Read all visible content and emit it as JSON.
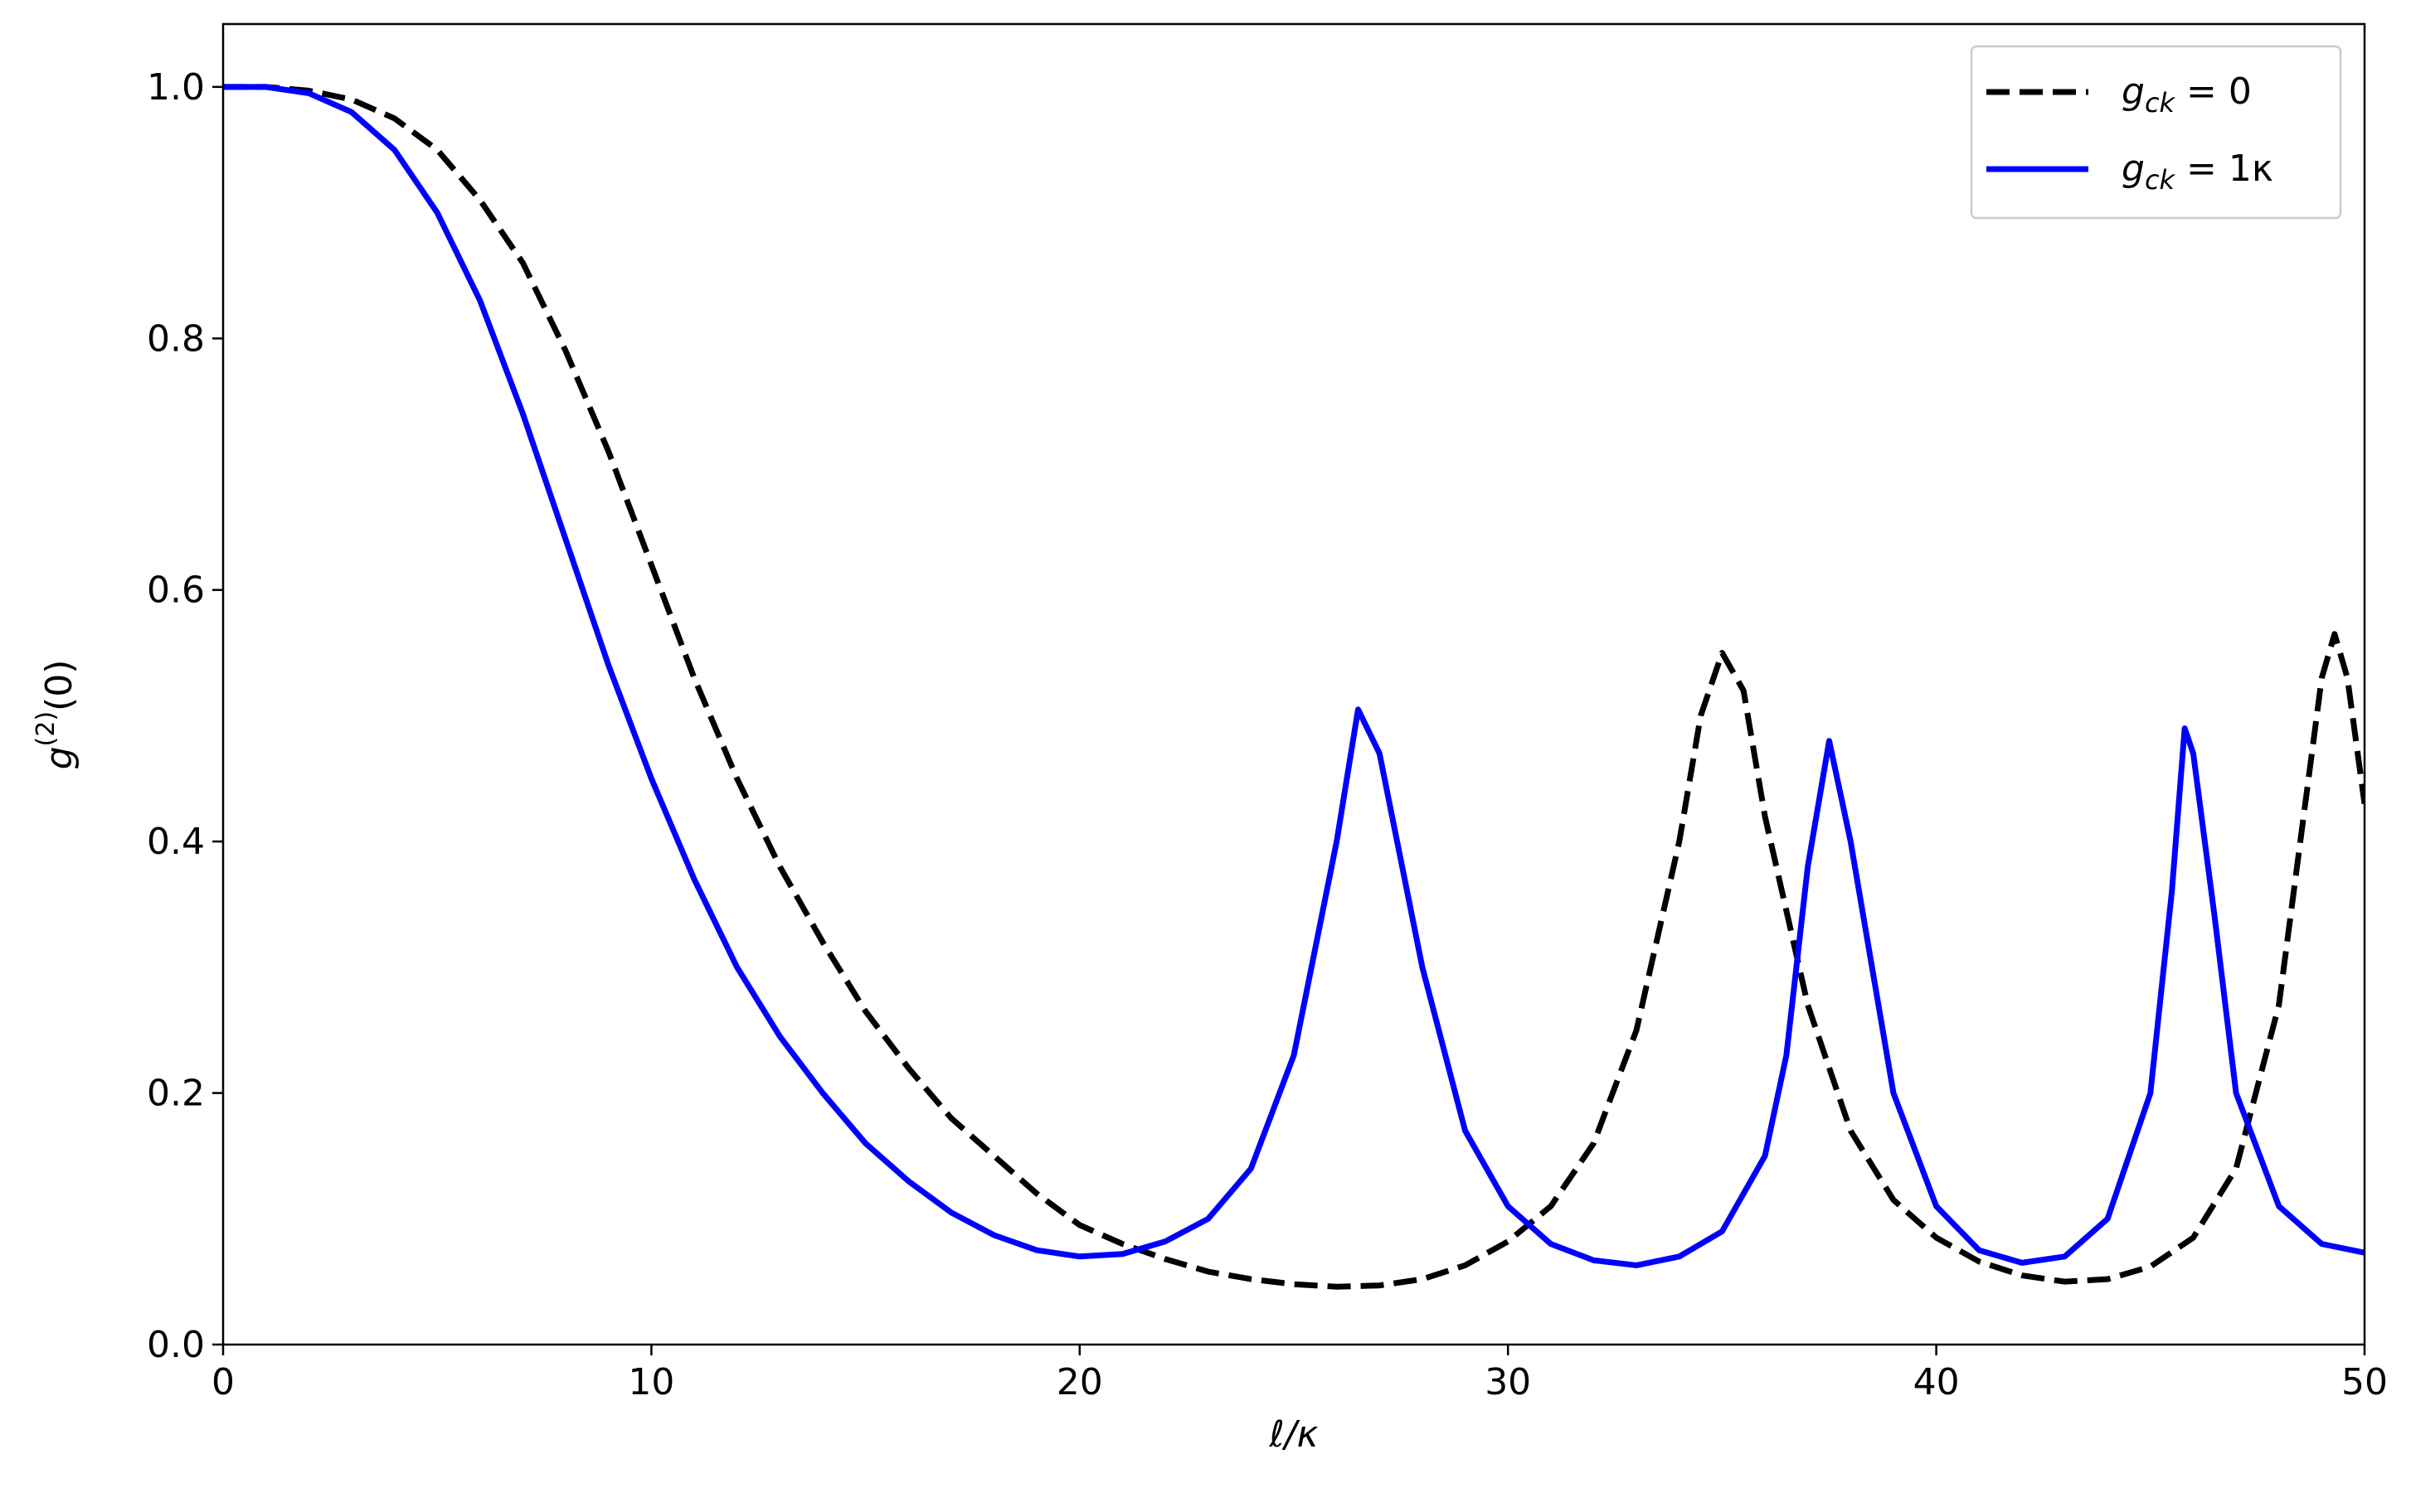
{
  "chart_data": {
    "type": "line",
    "xlabel": "ℓ/κ",
    "ylabel": "g(2)(0)",
    "xlim": [
      0,
      50
    ],
    "ylim": [
      0,
      1.05
    ],
    "xticks": [
      0,
      10,
      20,
      30,
      40,
      50
    ],
    "yticks": [
      {
        "value": 0,
        "label": "0.0"
      },
      0.2,
      0.4,
      0.6,
      0.8,
      {
        "value": 1,
        "label": "1.0"
      }
    ],
    "legend": "upper right",
    "series": [
      {
        "name": "gck = 0",
        "color": "#000000",
        "dash": true,
        "x": [
          0,
          1,
          2,
          3,
          4,
          5,
          6,
          7,
          8,
          9,
          10,
          11,
          12,
          13,
          14,
          15,
          16,
          17,
          18,
          19,
          20,
          21,
          22,
          23,
          24,
          25,
          26,
          27,
          28,
          29,
          30,
          31,
          32,
          33,
          34,
          34.5,
          35,
          35.5,
          36,
          37,
          38,
          39,
          40,
          41,
          42,
          43,
          44,
          45,
          46,
          47,
          48,
          48.5,
          49,
          49.3,
          49.6,
          50
        ],
        "values": [
          1.0,
          1.0,
          0.997,
          0.99,
          0.975,
          0.95,
          0.91,
          0.86,
          0.79,
          0.71,
          0.62,
          0.53,
          0.45,
          0.38,
          0.32,
          0.265,
          0.22,
          0.18,
          0.15,
          0.12,
          0.095,
          0.08,
          0.068,
          0.058,
          0.052,
          0.048,
          0.046,
          0.047,
          0.052,
          0.063,
          0.082,
          0.11,
          0.16,
          0.25,
          0.4,
          0.5,
          0.55,
          0.52,
          0.42,
          0.27,
          0.17,
          0.115,
          0.085,
          0.066,
          0.055,
          0.05,
          0.052,
          0.062,
          0.085,
          0.14,
          0.27,
          0.4,
          0.53,
          0.565,
          0.53,
          0.43
        ]
      },
      {
        "name": "gck = 1κ",
        "color": "#0000ff",
        "dash": false,
        "x": [
          0,
          1,
          2,
          3,
          4,
          5,
          6,
          7,
          8,
          9,
          10,
          11,
          12,
          13,
          14,
          15,
          16,
          17,
          18,
          19,
          20,
          21,
          22,
          23,
          24,
          25,
          26,
          26.5,
          27,
          28,
          29,
          30,
          31,
          32,
          33,
          34,
          35,
          36,
          36.5,
          37,
          37.5,
          38,
          39,
          40,
          41,
          42,
          43,
          44,
          45,
          45.5,
          45.8,
          46,
          46.5,
          47,
          48,
          49,
          50
        ],
        "values": [
          1.0,
          1.0,
          0.995,
          0.98,
          0.95,
          0.9,
          0.83,
          0.74,
          0.64,
          0.54,
          0.45,
          0.37,
          0.3,
          0.245,
          0.2,
          0.16,
          0.13,
          0.105,
          0.087,
          0.075,
          0.07,
          0.072,
          0.082,
          0.1,
          0.14,
          0.23,
          0.4,
          0.505,
          0.47,
          0.3,
          0.17,
          0.11,
          0.08,
          0.067,
          0.063,
          0.07,
          0.09,
          0.15,
          0.23,
          0.38,
          0.48,
          0.4,
          0.2,
          0.11,
          0.075,
          0.065,
          0.07,
          0.1,
          0.2,
          0.36,
          0.49,
          0.47,
          0.34,
          0.2,
          0.11,
          0.08,
          0.073
        ]
      }
    ]
  }
}
